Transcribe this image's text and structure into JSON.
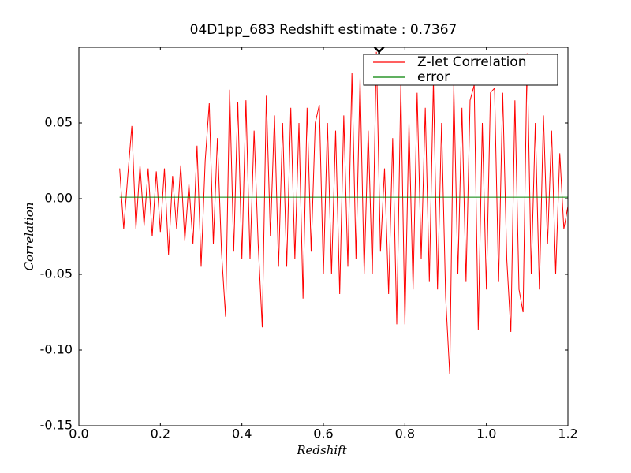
{
  "chart_data": {
    "type": "line",
    "title": "04D1pp_683 Redshift estimate : 0.7367",
    "xlabel": "Redshift",
    "ylabel": "Correlation",
    "xlim": [
      0,
      1.2
    ],
    "ylim": [
      -0.15,
      0.1
    ],
    "xticks": [
      {
        "value": 0,
        "label": "0.0"
      },
      {
        "value": 0.2,
        "label": "0.2"
      },
      {
        "value": 0.4,
        "label": "0.4"
      },
      {
        "value": 0.6,
        "label": "0.6"
      },
      {
        "value": 0.8,
        "label": "0.8"
      },
      {
        "value": 1.0,
        "label": "1.0"
      },
      {
        "value": 1.2,
        "label": "1.2"
      }
    ],
    "yticks": [
      {
        "value": 0.05,
        "label": "0.05"
      },
      {
        "value": 0,
        "label": "0.00"
      },
      {
        "value": -0.05,
        "label": "-0.05"
      },
      {
        "value": -0.1,
        "label": "-0.10"
      },
      {
        "value": -0.15,
        "label": "-0.15"
      }
    ],
    "legend": "upper right",
    "series": [
      {
        "name": "Z-let Correlation",
        "color": "#ff0000",
        "x": [
          0.1,
          0.11,
          0.12,
          0.13,
          0.14,
          0.15,
          0.16,
          0.17,
          0.18,
          0.19,
          0.2,
          0.21,
          0.22,
          0.23,
          0.24,
          0.25,
          0.26,
          0.27,
          0.28,
          0.29,
          0.3,
          0.31,
          0.32,
          0.33,
          0.34,
          0.35,
          0.36,
          0.37,
          0.38,
          0.39,
          0.4,
          0.41,
          0.42,
          0.43,
          0.44,
          0.45,
          0.46,
          0.47,
          0.48,
          0.49,
          0.5,
          0.51,
          0.52,
          0.53,
          0.54,
          0.55,
          0.56,
          0.57,
          0.58,
          0.59,
          0.6,
          0.61,
          0.62,
          0.63,
          0.64,
          0.65,
          0.66,
          0.67,
          0.68,
          0.69,
          0.7,
          0.71,
          0.72,
          0.73,
          0.74,
          0.75,
          0.76,
          0.77,
          0.78,
          0.79,
          0.8,
          0.81,
          0.82,
          0.83,
          0.84,
          0.85,
          0.86,
          0.87,
          0.88,
          0.89,
          0.9,
          0.91,
          0.92,
          0.93,
          0.94,
          0.95,
          0.96,
          0.97,
          0.98,
          0.99,
          1.0,
          1.01,
          1.02,
          1.03,
          1.04,
          1.05,
          1.06,
          1.07,
          1.08,
          1.09,
          1.1,
          1.11,
          1.12,
          1.13,
          1.14,
          1.15,
          1.16,
          1.17,
          1.18,
          1.19,
          1.2
        ],
        "values": [
          0.02,
          -0.02,
          0.015,
          0.048,
          -0.02,
          0.022,
          -0.018,
          0.02,
          -0.025,
          0.018,
          -0.022,
          0.02,
          -0.037,
          0.015,
          -0.02,
          0.022,
          -0.028,
          0.01,
          -0.03,
          0.035,
          -0.045,
          0.025,
          0.063,
          -0.03,
          0.04,
          -0.035,
          -0.078,
          0.072,
          -0.035,
          0.064,
          -0.04,
          0.065,
          -0.04,
          0.045,
          -0.03,
          -0.085,
          0.068,
          -0.025,
          0.055,
          -0.045,
          0.05,
          -0.045,
          0.06,
          -0.04,
          0.05,
          -0.066,
          0.06,
          -0.035,
          0.05,
          0.062,
          -0.05,
          0.05,
          -0.05,
          0.045,
          -0.063,
          0.055,
          -0.045,
          0.083,
          -0.04,
          0.08,
          -0.05,
          0.045,
          -0.05,
          0.097,
          -0.035,
          0.02,
          -0.063,
          0.04,
          -0.083,
          0.075,
          -0.083,
          0.05,
          -0.06,
          0.07,
          -0.04,
          0.06,
          -0.055,
          0.078,
          -0.06,
          0.05,
          -0.065,
          -0.116,
          0.075,
          -0.05,
          0.06,
          -0.055,
          0.065,
          0.075,
          -0.087,
          0.05,
          -0.06,
          0.07,
          0.073,
          -0.055,
          0.07,
          -0.04,
          -0.088,
          0.065,
          -0.06,
          -0.075,
          0.096,
          -0.05,
          0.05,
          -0.06,
          0.055,
          -0.03,
          0.045,
          -0.05,
          0.03,
          -0.02,
          -0.005
        ]
      },
      {
        "name": "error",
        "color": "#008000",
        "x": [
          0.1,
          1.2
        ],
        "values": [
          0.001,
          0.001
        ]
      }
    ],
    "estimate_marker": {
      "x": 0.7367,
      "y": 0.097,
      "color": "#000000"
    }
  }
}
